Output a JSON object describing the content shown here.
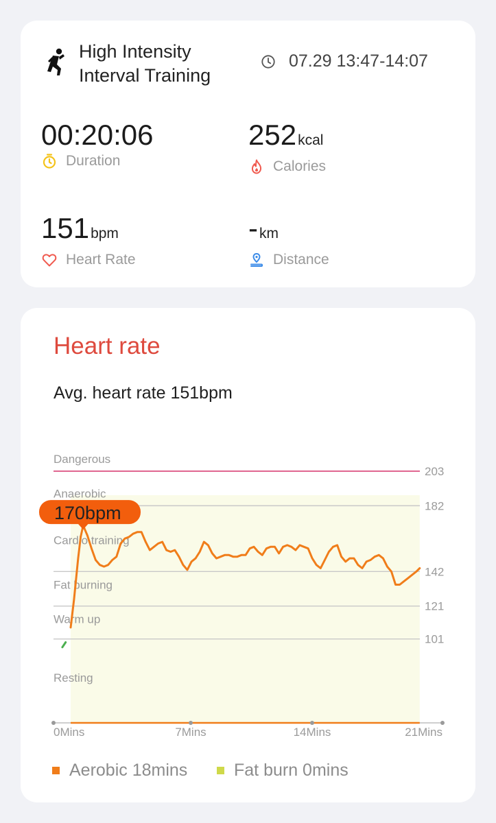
{
  "workout": {
    "title": "High Intensity Interval Training",
    "icon": "person-exercising-icon",
    "time_range": "07.29 13:47-14:07"
  },
  "stats": {
    "duration": {
      "value": "00:20:06",
      "unit": "",
      "label": "Duration",
      "icon": "stopwatch-icon",
      "color": "#f4c31a"
    },
    "calories": {
      "value": "252",
      "unit": "kcal",
      "label": "Calories",
      "icon": "flame-icon",
      "color": "#f05a4f"
    },
    "heart_rate": {
      "value": "151",
      "unit": "bpm",
      "label": "Heart Rate",
      "icon": "heart-icon",
      "color": "#f05a4f"
    },
    "distance": {
      "value": "-",
      "unit": "km",
      "label": "Distance",
      "icon": "location-pin-icon",
      "color": "#3b8be8"
    }
  },
  "heart_card": {
    "title": "Heart rate",
    "avg_text": "Avg. heart rate 151bpm"
  },
  "chart_data": {
    "type": "line",
    "x_unit": "minutes",
    "y_unit": "bpm",
    "ylim": [
      50,
      203
    ],
    "xlim": [
      0,
      21
    ],
    "x_ticks": [
      {
        "value": 0,
        "label": "0Mins"
      },
      {
        "value": 7,
        "label": "7Mins"
      },
      {
        "value": 14,
        "label": "14Mins"
      },
      {
        "value": 21,
        "label": "21Mins"
      }
    ],
    "zones": [
      {
        "name": "Dangerous",
        "threshold": 203,
        "label": "203",
        "color": "#d6336c"
      },
      {
        "name": "Anaerobic",
        "threshold": 182,
        "label": "182",
        "color": "#c8c8c8"
      },
      {
        "name": "Cardio training",
        "threshold": null,
        "label": "",
        "color": "#c8c8c8"
      },
      {
        "name": "Fat burning",
        "threshold": 142,
        "label": "142",
        "color": "#c8c8c8"
      },
      {
        "name": "Warm up",
        "threshold": 121,
        "label": "121",
        "color": "#c8c8c8"
      },
      {
        "name": "Resting",
        "threshold": 101,
        "label": "101",
        "color": "#c8c8c8"
      }
    ],
    "series": [
      {
        "x": [
          -0.5,
          -0.3,
          0,
          0.2,
          0.45,
          0.6,
          0.75,
          1,
          1.25,
          1.5,
          1.75,
          2,
          2.25,
          2.5,
          2.75,
          3,
          3.25,
          3.5,
          3.75,
          4,
          4.25,
          4.5,
          4.75,
          5,
          5.25,
          5.5,
          5.75,
          6,
          6.25,
          6.5,
          6.75,
          7,
          7.25,
          7.5,
          7.75,
          8,
          8.25,
          8.5,
          8.75,
          9,
          9.25,
          9.5,
          9.75,
          10,
          10.25,
          10.5,
          10.75,
          11,
          11.25,
          11.5,
          11.75,
          12,
          12.25,
          12.5,
          12.75,
          13,
          13.25,
          13.5,
          13.75,
          14,
          14.25,
          14.5,
          14.75,
          15,
          15.25,
          15.5,
          15.75,
          16,
          16.25,
          16.5,
          16.75,
          17,
          17.25,
          17.5,
          17.75,
          18,
          18.25,
          18.5,
          18.75,
          19,
          19.25,
          19.5,
          19.75,
          20,
          20.25,
          20.5,
          20.75,
          20.95
        ],
        "y": [
          96,
          99,
          108,
          125,
          150,
          163,
          170,
          164,
          156,
          149,
          146,
          145,
          146,
          149,
          151,
          159,
          162,
          163,
          165,
          166,
          166,
          160,
          155,
          157,
          159,
          160,
          155,
          154,
          155,
          151,
          146,
          143,
          148,
          150,
          154,
          160,
          158,
          153,
          150,
          151,
          152,
          152,
          151,
          151,
          152,
          152,
          156,
          157,
          154,
          152,
          156,
          157,
          157,
          153,
          157,
          158,
          157,
          155,
          158,
          157,
          156,
          150,
          146,
          144,
          149,
          154,
          157,
          158,
          151,
          148,
          150,
          150,
          146,
          144,
          148,
          149,
          151,
          152,
          150,
          145,
          142,
          134,
          134,
          136,
          138,
          140,
          142,
          144
        ],
        "colors": {
          "resting": "#4caf50",
          "aerobic": "#f07d1a"
        }
      }
    ],
    "tooltip": {
      "label": "170bpm",
      "x": 0.75,
      "y": 170,
      "color": "#f25e0d"
    }
  },
  "legend": [
    {
      "label": "Aerobic 18mins",
      "color": "#f07d1a"
    },
    {
      "label": "Fat burn 0mins",
      "color": "#cfd94a"
    }
  ]
}
